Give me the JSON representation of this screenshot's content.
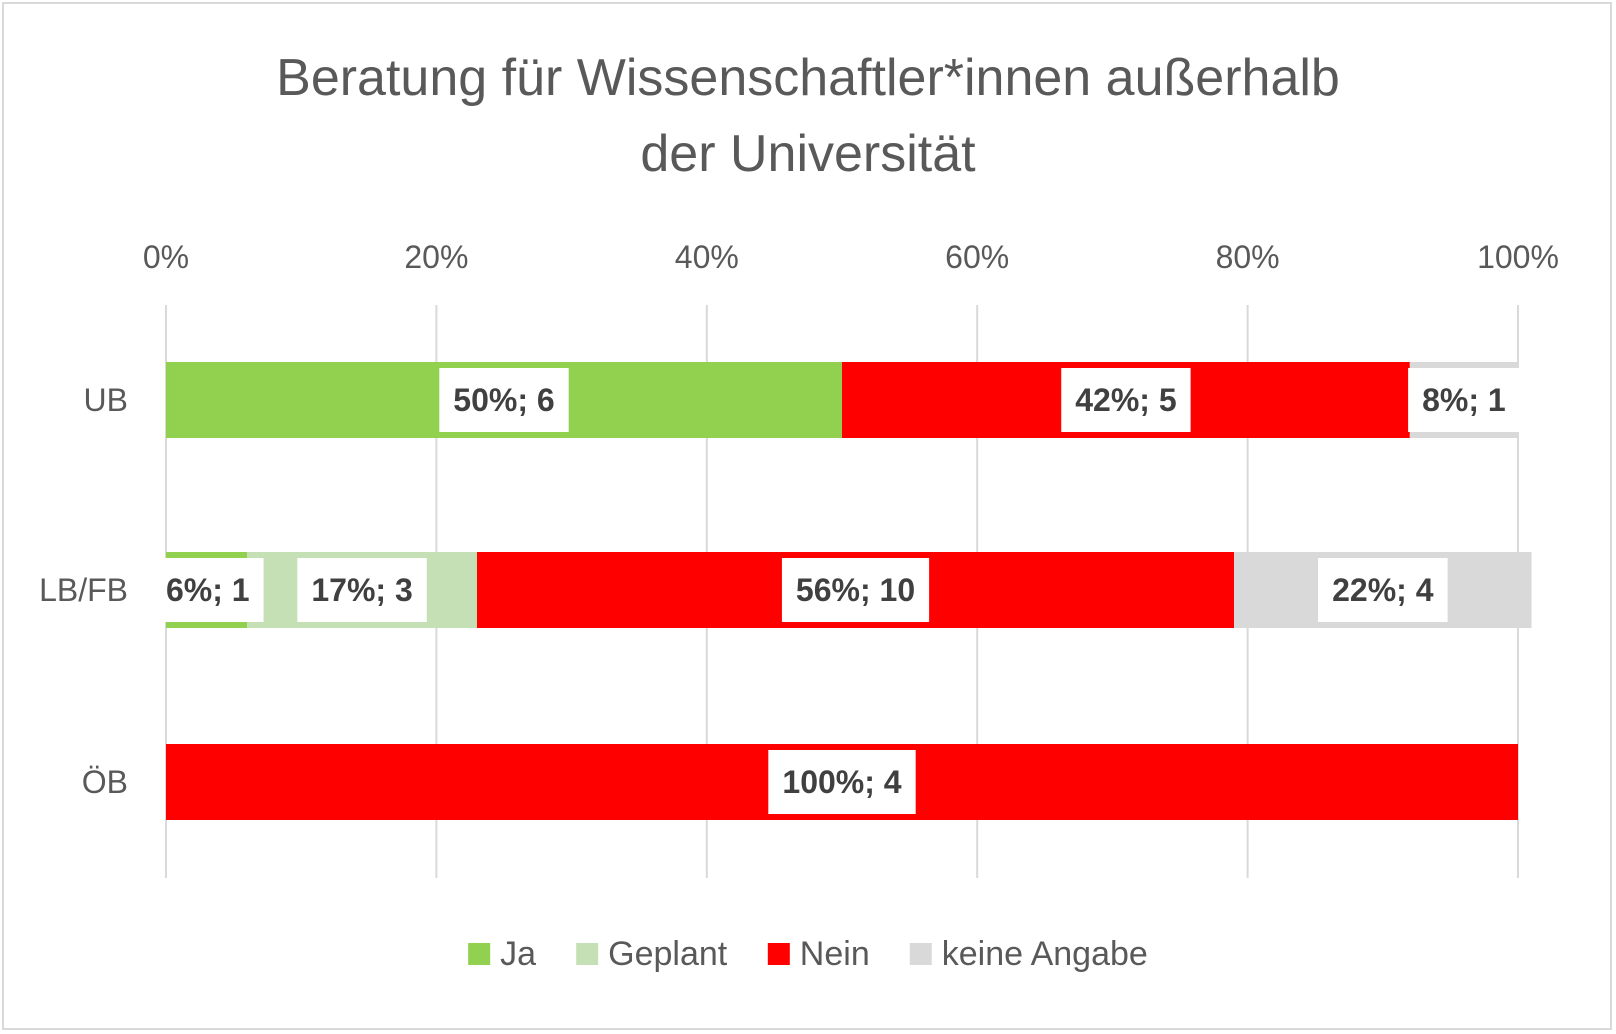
{
  "chart_data": {
    "type": "bar",
    "orientation": "horizontal",
    "stacked": "percent",
    "title": "Beratung für Wissenschaftler*innen außerhalb der Universität",
    "title_lines": [
      "Beratung für Wissenschaftler*innen außerhalb",
      "der Universität"
    ],
    "categories": [
      "UB",
      "LB/FB",
      "ÖB"
    ],
    "x_axis": {
      "position": "top",
      "range": [
        0,
        100
      ],
      "ticks": [
        "0%",
        "20%",
        "40%",
        "60%",
        "80%",
        "100%"
      ]
    },
    "gridlines": true,
    "legend_position": "bottom",
    "series": [
      {
        "name": "Ja",
        "color": "#92d050",
        "values": [
          50,
          6,
          0
        ],
        "labels": [
          "50%; 6",
          "6%; 1",
          ""
        ]
      },
      {
        "name": "Geplant",
        "color": "#c5e0b4",
        "values": [
          0,
          17,
          0
        ],
        "labels": [
          "",
          "17%; 3",
          ""
        ]
      },
      {
        "name": "Nein",
        "color": "#ff0000",
        "values": [
          42,
          56,
          100
        ],
        "labels": [
          "42%; 5",
          "56%; 10",
          "100%; 4"
        ]
      },
      {
        "name": "keine Angabe",
        "color": "#d9d9d9",
        "values": [
          8,
          22,
          0
        ],
        "labels": [
          "8%; 1",
          "22%; 4",
          ""
        ]
      }
    ]
  }
}
